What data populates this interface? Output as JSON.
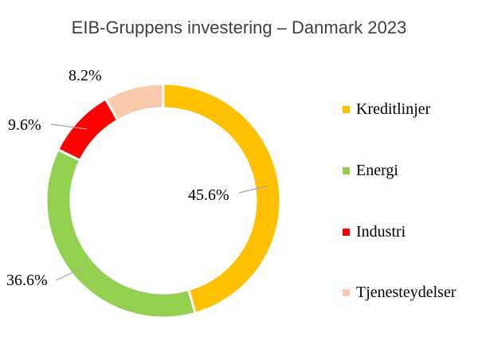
{
  "chart_data": {
    "type": "pie",
    "subtype": "donut",
    "title": "EIB-Gruppens investering – Danmark 2023",
    "categories": [
      "Kreditlinjer",
      "Energi",
      "Industri",
      "Tjenesteydelser"
    ],
    "values": [
      45.6,
      36.6,
      9.6,
      8.2
    ],
    "data_labels": [
      "45.6%",
      "36.6%",
      "9.6%",
      "8.2%"
    ],
    "colors": [
      "#FFC000",
      "#92D050",
      "#FF0000",
      "#F8CBAD"
    ],
    "legend_position": "right"
  }
}
